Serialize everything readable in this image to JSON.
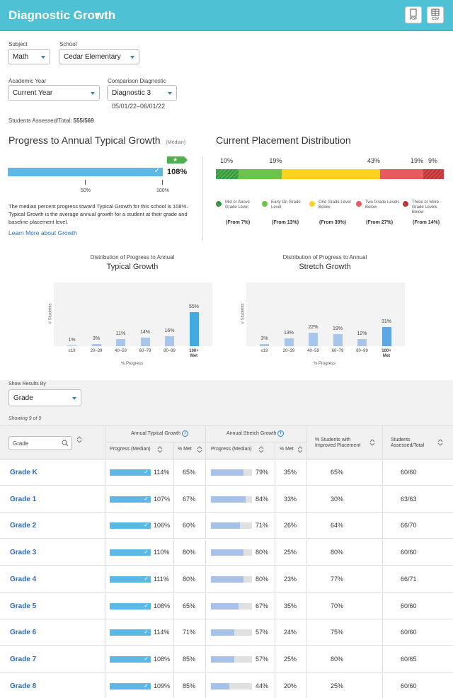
{
  "header": {
    "title": "Diagnostic Growth",
    "export_pdf": "PDF",
    "export_csv": "CSV"
  },
  "filters": {
    "subject_label": "Subject",
    "subject_value": "Math",
    "school_label": "School",
    "school_value": "Cedar Elementary",
    "year_label": "Academic Year",
    "year_value": "Current Year",
    "comparison_label": "Comparison Diagnostic",
    "comparison_value": "Diagnostic 3",
    "comparison_dates": "05/01/22–06/01/22"
  },
  "students_assessed": {
    "label": "Students Assessed/Total:",
    "value": "555/569"
  },
  "progress": {
    "title": "Progress to Annual Typical Growth",
    "title_note": "(Median)",
    "value_label": "108%",
    "value_fraction": 1.08,
    "tick_50": "50%",
    "tick_100": "100%",
    "description": "The median percent progress toward Typical Growth for this school is 108%. Typical Growth is the average annual growth for a student at their grade and baseline placement level.",
    "learn_more": "Learn More about Growth"
  },
  "placement": {
    "title": "Current Placement Distribution",
    "segments": [
      {
        "pct_label": "10%",
        "value": 10,
        "color": "#4caf50",
        "hatched": true,
        "legend": "Mid or Above Grade Level",
        "from": "(From 7%)"
      },
      {
        "pct_label": "19%",
        "value": 19,
        "color": "#6cc24a",
        "hatched": false,
        "legend": "Early On Grade Level",
        "from": "(From 13%)"
      },
      {
        "pct_label": "43%",
        "value": 43,
        "color": "#fbd31f",
        "hatched": false,
        "legend": "One Grade Level Below",
        "from": "(From 39%)"
      },
      {
        "pct_label": "19%",
        "value": 19,
        "color": "#e95a5f",
        "hatched": false,
        "legend": "Two Grade Levels Below",
        "from": "(From 27%)"
      },
      {
        "pct_label": "9%",
        "value": 9,
        "color": "#d64548",
        "hatched": true,
        "legend": "Three or More Grade Levels Below",
        "from": "(From 14%)"
      }
    ]
  },
  "chart_data": [
    {
      "type": "bar",
      "title_line1": "Distribution of Progress to Annual",
      "title_line2": "Typical Growth",
      "ylabel": "# Students",
      "xlabel": "% Progress",
      "categories": [
        "≤19",
        "20–39",
        "40–59",
        "60–79",
        "80–99",
        "100+ Met"
      ],
      "values": [
        1,
        3,
        11,
        14,
        16,
        55
      ],
      "value_labels": [
        "1%",
        "3%",
        "11%",
        "14%",
        "16%",
        "55%"
      ],
      "ylim": [
        0,
        55
      ]
    },
    {
      "type": "bar",
      "title_line1": "Distribution of Progress to Annual",
      "title_line2": "Stretch Growth",
      "ylabel": "# Students",
      "xlabel": "% Progress",
      "categories": [
        "≤19",
        "20–39",
        "40–59",
        "60–79",
        "80–99",
        "100+ Met"
      ],
      "values": [
        3,
        13,
        22,
        19,
        12,
        31
      ],
      "value_labels": [
        "3%",
        "13%",
        "22%",
        "19%",
        "12%",
        "31%"
      ],
      "ylim": [
        0,
        55
      ]
    }
  ],
  "results": {
    "show_by_label": "Show Results By",
    "show_by_value": "Grade",
    "showing": "Showing 9 of 9",
    "search_placeholder": "Grade",
    "col_typical_group": "Annual Typical Growth",
    "col_stretch_group": "Annual Stretch Growth",
    "col_progress": "Progress (Median)",
    "col_met": "% Met",
    "col_improved": "% Students with Improved Placement",
    "col_assessed": "Students Assessed/Total",
    "rows": [
      {
        "grade": "Grade K",
        "typical": "114%",
        "typical_val": 1.14,
        "met1": "65%",
        "stretch": "79%",
        "stretch_val": 0.79,
        "met2": "35%",
        "improved": "65%",
        "assessed": "60/60"
      },
      {
        "grade": "Grade 1",
        "typical": "107%",
        "typical_val": 1.07,
        "met1": "67%",
        "stretch": "84%",
        "stretch_val": 0.84,
        "met2": "33%",
        "improved": "30%",
        "assessed": "63/63"
      },
      {
        "grade": "Grade 2",
        "typical": "106%",
        "typical_val": 1.06,
        "met1": "60%",
        "stretch": "71%",
        "stretch_val": 0.71,
        "met2": "26%",
        "improved": "64%",
        "assessed": "66/70"
      },
      {
        "grade": "Grade 3",
        "typical": "110%",
        "typical_val": 1.1,
        "met1": "80%",
        "stretch": "80%",
        "stretch_val": 0.8,
        "met2": "25%",
        "improved": "80%",
        "assessed": "60/60"
      },
      {
        "grade": "Grade 4",
        "typical": "111%",
        "typical_val": 1.11,
        "met1": "80%",
        "stretch": "80%",
        "stretch_val": 0.8,
        "met2": "23%",
        "improved": "77%",
        "assessed": "66/71"
      },
      {
        "grade": "Grade 5",
        "typical": "108%",
        "typical_val": 1.08,
        "met1": "65%",
        "stretch": "67%",
        "stretch_val": 0.67,
        "met2": "35%",
        "improved": "70%",
        "assessed": "60/60"
      },
      {
        "grade": "Grade 6",
        "typical": "114%",
        "typical_val": 1.14,
        "met1": "71%",
        "stretch": "57%",
        "stretch_val": 0.57,
        "met2": "24%",
        "improved": "75%",
        "assessed": "60/60"
      },
      {
        "grade": "Grade 7",
        "typical": "108%",
        "typical_val": 1.08,
        "met1": "85%",
        "stretch": "57%",
        "stretch_val": 0.57,
        "met2": "25%",
        "improved": "80%",
        "assessed": "60/65"
      },
      {
        "grade": "Grade 8",
        "typical": "109%",
        "typical_val": 1.09,
        "met1": "85%",
        "stretch": "44%",
        "stretch_val": 0.44,
        "met2": "20%",
        "improved": "25%",
        "assessed": "60/60"
      }
    ]
  },
  "colors": {
    "accent": "#4fc1d5",
    "progress_bar": "#5cb9e6",
    "stretch_bar": "#a7c1e8",
    "chart_bar_typical": "#43a9e0",
    "chart_bar_stretch": "#5ea7e6",
    "link": "#2c6bbb",
    "badge": "#4caf50"
  }
}
